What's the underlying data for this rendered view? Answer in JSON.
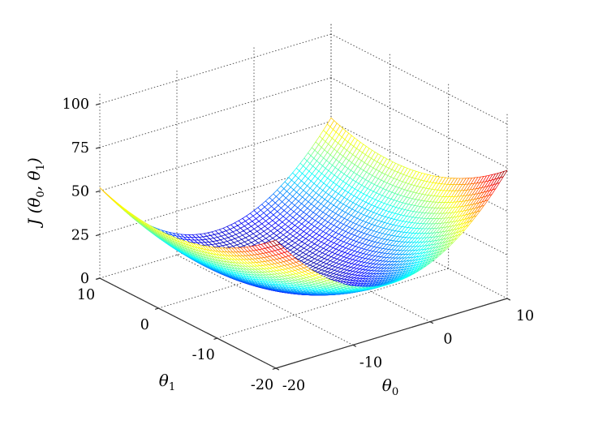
{
  "figure": {
    "background_color": "#ffffff",
    "grid_color": "#3d3d3d",
    "axis_color": "#333333",
    "text_color": "#000000",
    "grid_style": "dotted"
  },
  "chart_data": {
    "type": "3d-surface-mesh",
    "title": "",
    "xlabel": {
      "base": "θ",
      "sub": "0"
    },
    "ylabel": {
      "base": "θ",
      "sub": "1"
    },
    "zlabel_parts": [
      "J (θ",
      "0",
      ", θ",
      "1",
      ")"
    ],
    "x_axis": {
      "variable": "theta_0",
      "domain": [
        -20,
        10
      ],
      "ticks": [
        -20,
        -10,
        0,
        10
      ]
    },
    "y_axis": {
      "variable": "theta_1",
      "domain": [
        -20,
        10
      ],
      "ticks": [
        10,
        0,
        -10,
        -20
      ]
    },
    "z_axis": {
      "domain": [
        0,
        107
      ],
      "ticks": [
        0,
        25,
        50,
        75,
        100
      ]
    },
    "surface": {
      "description": "Convex bowl-shaped cost function surface, MATLAB-style colored wireframe mesh with opaque white faces",
      "model": "J = a*(theta0 - theta0_min)^2 + b*(theta1 - theta1_min)^2",
      "a": 0.199,
      "theta0_min": -5,
      "b": 0.0717,
      "theta1_min": 0,
      "grid_cells": 60,
      "min_J": 0,
      "corner_values": [
        {
          "theta0": -20,
          "theta1": 10,
          "J": 52
        },
        {
          "theta0": 10,
          "theta1": 10,
          "J": 52
        },
        {
          "theta0": 10,
          "theta1": -20,
          "J": 73
        },
        {
          "theta0": -20,
          "theta1": -20,
          "J": 73
        }
      ],
      "colormap": "jet",
      "color_range": [
        0,
        73.4
      ]
    },
    "legend": null
  }
}
